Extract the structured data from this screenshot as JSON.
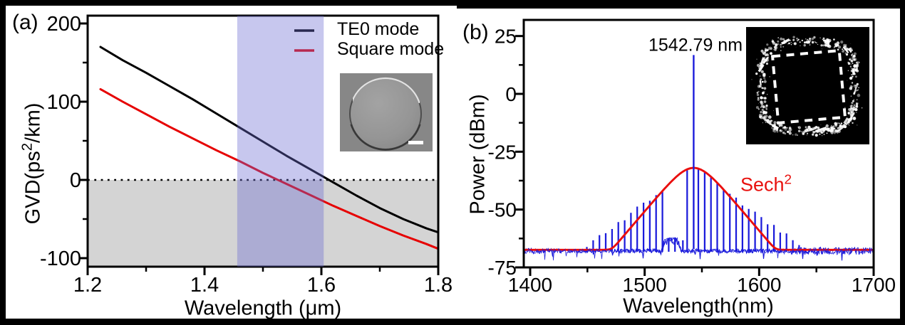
{
  "panels": {
    "a": {
      "label": "(a)",
      "xlabel": "Wavelength (μm)",
      "ylabel_prefix": "GVD(ps",
      "ylabel_sup": "2",
      "ylabel_suffix": "/km)",
      "legend": [
        {
          "label": "TE0 mode",
          "color": "#000000"
        },
        {
          "label": "Square mode",
          "color": "#e60000"
        }
      ],
      "inset": {
        "type": "sem-image-of-circular-microdisk",
        "has_scale_bar": true
      }
    },
    "b": {
      "label": "(b)",
      "xlabel": "Wavelength(nm)",
      "ylabel": "Power (dBm)",
      "peak_annotation": "1542.79 nm",
      "fit_label": "Sech",
      "fit_label_sup": "2",
      "inset": {
        "type": "scattered-light-image-of-square-mode",
        "dashed_outline": "square"
      }
    }
  },
  "chart_data": [
    {
      "id": "gvd_dispersion",
      "type": "line",
      "xlabel": "Wavelength (μm)",
      "ylabel": "GVD(ps²/km)",
      "xlim": [
        1.2,
        1.8
      ],
      "ylim": [
        -111,
        210
      ],
      "xticks": [
        1.2,
        1.4,
        1.6,
        1.8
      ],
      "xminor": [
        1.3,
        1.5,
        1.7
      ],
      "yticks": [
        -100,
        0,
        100,
        200
      ],
      "yminor": [
        -50,
        50,
        150
      ],
      "zero_line": 0,
      "anomalous_region_fill": {
        "below_y": 0,
        "color": "#d4d4d4"
      },
      "highlight_band_x": [
        1.456,
        1.604
      ],
      "band_color": "rgba(108,108,210,0.38)",
      "series": [
        {
          "name": "TE0 mode",
          "color": "#000000",
          "points": [
            [
              1.222,
              170
            ],
            [
              1.26,
              153
            ],
            [
              1.3,
              137
            ],
            [
              1.34,
              120
            ],
            [
              1.38,
              103
            ],
            [
              1.42,
              85
            ],
            [
              1.46,
              67
            ],
            [
              1.5,
              49
            ],
            [
              1.54,
              31
            ],
            [
              1.58,
              14
            ],
            [
              1.62,
              -3
            ],
            [
              1.66,
              -20
            ],
            [
              1.7,
              -36
            ],
            [
              1.74,
              -50
            ],
            [
              1.78,
              -62
            ],
            [
              1.8,
              -67
            ]
          ]
        },
        {
          "name": "Square mode",
          "color": "#e60000",
          "points": [
            [
              1.222,
              116
            ],
            [
              1.26,
              100
            ],
            [
              1.3,
              84
            ],
            [
              1.34,
              68
            ],
            [
              1.38,
              53
            ],
            [
              1.42,
              38
            ],
            [
              1.46,
              24
            ],
            [
              1.5,
              9
            ],
            [
              1.54,
              -5
            ],
            [
              1.58,
              -19
            ],
            [
              1.62,
              -33
            ],
            [
              1.66,
              -46
            ],
            [
              1.7,
              -59
            ],
            [
              1.74,
              -71
            ],
            [
              1.78,
              -82
            ],
            [
              1.8,
              -88
            ]
          ]
        }
      ]
    },
    {
      "id": "comb_spectrum",
      "type": "line",
      "xlabel": "Wavelength(nm)",
      "ylabel": "Power (dBm)",
      "xlim": [
        1394.4,
        1700
      ],
      "ylim": [
        -75,
        32
      ],
      "xticks": [
        1400,
        1500,
        1600,
        1700
      ],
      "xminor": [
        1450,
        1550,
        1650
      ],
      "yticks": [
        25,
        0,
        -25,
        -50,
        -75
      ],
      "yminor": [
        12.5,
        -12.5,
        -37.5,
        -62.5
      ],
      "spectrum_color": "#1b1bdb",
      "noise_floor_dbm": -67.9,
      "pump": {
        "wavelength_nm": 1542.79,
        "power_dbm": 17,
        "label": "1542.79 nm"
      },
      "comb_spacing_nm": 5.5,
      "comb_teeth_left_start_nm": 1515.5,
      "comb_teeth_right_start_nm": 1546.9,
      "comb_span_nm": [
        1449,
        1641
      ],
      "wing_slope_db_per_nm": 0.36,
      "small_teeth": [
        [
          1521,
          -62.3
        ],
        [
          1526.5,
          -62.0
        ],
        [
          1533.4,
          -63.3
        ]
      ],
      "apex_tooth": [
        1537.1,
        -32.9
      ],
      "noise_hump": {
        "span_nm": [
          1515,
          1531.5
        ],
        "amp_db": 4.3
      },
      "envelope": {
        "type": "sech2",
        "label": "Sech²",
        "peak_dbm": -32,
        "center_nm": 1542.79,
        "scale_nm": 15,
        "color": "#ea0e0e"
      }
    }
  ]
}
